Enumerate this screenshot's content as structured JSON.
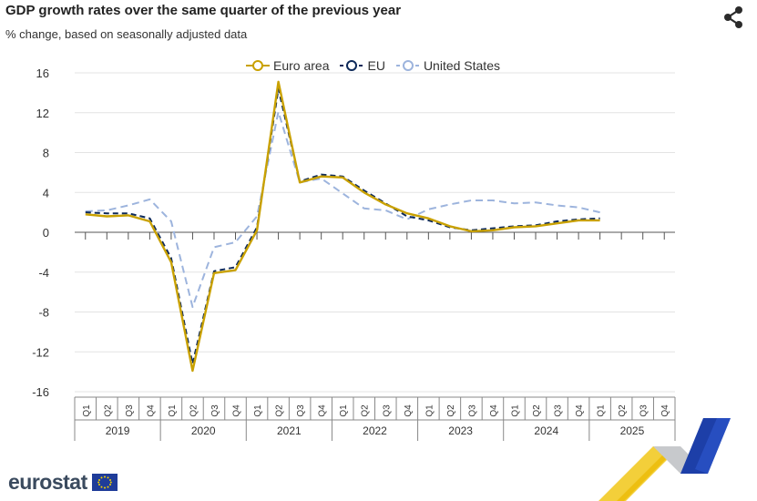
{
  "header": {
    "title": "GDP growth rates over the same quarter of the previous year",
    "subtitle": "% change, based on seasonally adjusted data",
    "share_icon": "share-icon"
  },
  "logo": {
    "text": "eurostat",
    "flag_icon": "eu-flag-icon"
  },
  "colors": {
    "euro_area": "#c9a100",
    "eu": "#0e2a5a",
    "united_states": "#9db4dd",
    "grid": "#e3e3e3",
    "axis": "#555555"
  },
  "chart_data": {
    "type": "line",
    "title": "GDP growth rates over the same quarter of the previous year",
    "subtitle": "% change, based on seasonally adjusted data",
    "ylim": [
      -16,
      16
    ],
    "yticks": [
      16,
      12,
      8,
      4,
      0,
      -4,
      -8,
      -12,
      -16
    ],
    "grid": true,
    "legend_position": "top-center",
    "years": [
      "2019",
      "2020",
      "2021",
      "2022",
      "2023",
      "2024",
      "2025"
    ],
    "quarters": [
      "Q1",
      "Q2",
      "Q3",
      "Q4"
    ],
    "categories": [
      "2019 Q1",
      "2019 Q2",
      "2019 Q3",
      "2019 Q4",
      "2020 Q1",
      "2020 Q2",
      "2020 Q3",
      "2020 Q4",
      "2021 Q1",
      "2021 Q2",
      "2021 Q3",
      "2021 Q4",
      "2022 Q1",
      "2022 Q2",
      "2022 Q3",
      "2022 Q4",
      "2023 Q1",
      "2023 Q2",
      "2023 Q3",
      "2023 Q4",
      "2024 Q1",
      "2024 Q2",
      "2024 Q3",
      "2024 Q4",
      "2025 Q1",
      "2025 Q2",
      "2025 Q3",
      "2025 Q4"
    ],
    "series": [
      {
        "name": "Euro area",
        "color": "#c9a100",
        "style": "solid",
        "values": [
          1.8,
          1.6,
          1.7,
          1.1,
          -3.0,
          -13.9,
          -4.1,
          -3.8,
          0.2,
          15.1,
          5.0,
          5.6,
          5.5,
          4.0,
          2.8,
          1.9,
          1.4,
          0.6,
          0.1,
          0.2,
          0.5,
          0.6,
          0.9,
          1.2,
          1.2,
          null,
          null,
          null
        ]
      },
      {
        "name": "EU",
        "color": "#0e2a5a",
        "style": "dashed",
        "values": [
          2.0,
          1.9,
          1.9,
          1.4,
          -2.6,
          -13.2,
          -3.9,
          -3.5,
          0.5,
          14.4,
          5.1,
          5.8,
          5.6,
          4.2,
          2.9,
          1.6,
          1.2,
          0.5,
          0.2,
          0.4,
          0.6,
          0.7,
          1.1,
          1.3,
          1.4,
          null,
          null,
          null
        ]
      },
      {
        "name": "United States",
        "color": "#9db4dd",
        "style": "dashed",
        "values": [
          2.1,
          2.2,
          2.7,
          3.3,
          1.1,
          -7.5,
          -1.5,
          -1.0,
          1.6,
          12.1,
          5.0,
          5.4,
          3.9,
          2.4,
          2.2,
          1.3,
          2.3,
          2.8,
          3.2,
          3.2,
          2.9,
          3.0,
          2.7,
          2.5,
          2.0,
          null,
          null,
          null
        ]
      }
    ]
  }
}
